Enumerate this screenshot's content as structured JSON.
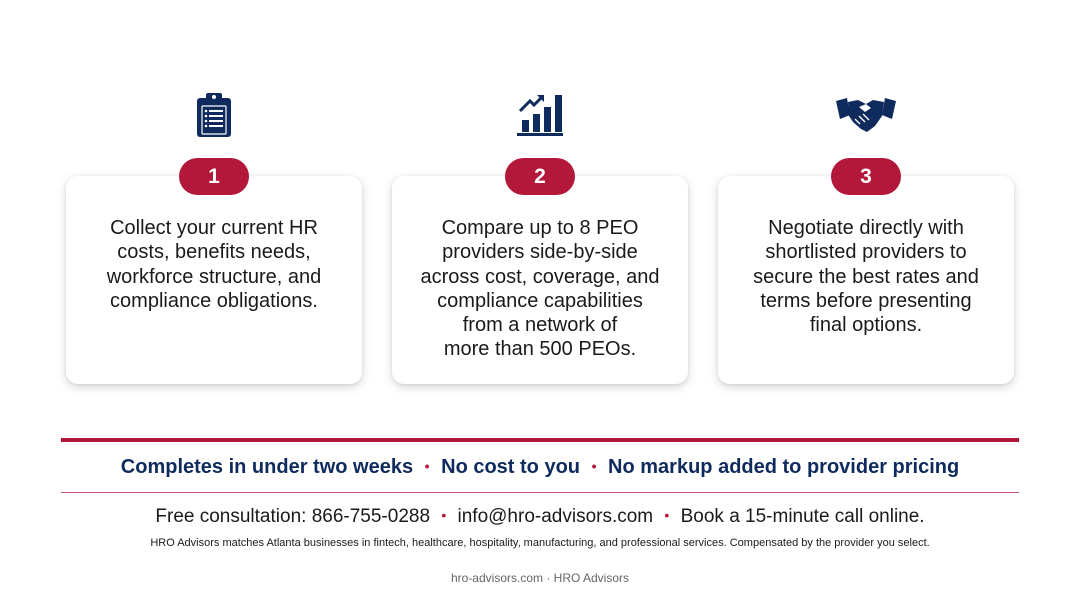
{
  "colors": {
    "accent": "#b3173a",
    "navy": "#0f2a5c",
    "icon": "#0f2a5c"
  },
  "steps": [
    {
      "number": "1",
      "icon": "clipboard-icon",
      "text": "Collect your current HR\ncosts, benefits needs,\nworkforce structure, and\ncompliance obligations."
    },
    {
      "number": "2",
      "icon": "growth-chart-icon",
      "text": "Compare up to 8 PEO\nproviders side-by-side\nacross cost, coverage, and\ncompliance capabilities\nfrom a network of\nmore than 500 PEOs."
    },
    {
      "number": "3",
      "icon": "handshake-icon",
      "text": "Negotiate directly with\nshortlisted providers to\nsecure the best rates and\nterms before presenting\nfinal options."
    }
  ],
  "highlights": {
    "item1": "Completes in under two weeks",
    "item2": "No cost to you",
    "item3": "No markup added to provider pricing",
    "separator": "•"
  },
  "contact": {
    "phone": "Free consultation: 866-755-0288",
    "email": "info@hro-advisors.com",
    "call": "Book a 15-minute call online.",
    "separator": "•"
  },
  "disclaimer": "HRO Advisors matches Atlanta businesses in fintech, healthcare, hospitality, manufacturing, and professional services. Compensated by the provider you select.",
  "footer": "hro-advisors.com · HRO Advisors"
}
